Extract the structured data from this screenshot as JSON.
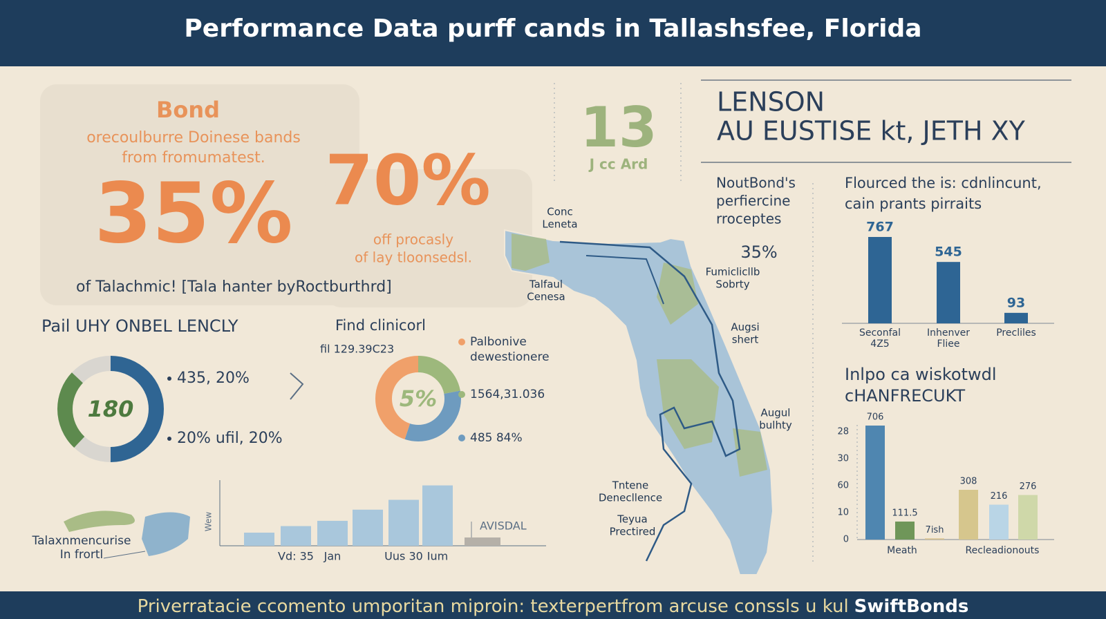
{
  "header": {
    "title": "Performance Data purff cands in Tallashsfee, Florida"
  },
  "bond_panel": {
    "heading": "Bond",
    "subtitle": [
      "orecoulburre Doinese bands",
      "from fromumatest."
    ],
    "big_stat": "35%",
    "second_stat": "70%",
    "second_caption": [
      "off procasly",
      "of lay tloonsedsl."
    ],
    "footnote": "of Talachmic! [Tala hanter byRoctburthrd]"
  },
  "badge": {
    "value": "13",
    "caption": "J cc Ard"
  },
  "headline": {
    "lines": [
      "LENSON",
      "AU EUSTISE kt, JETH XY"
    ]
  },
  "donut_left": {
    "title": "Pail UHY ONBEL LENCLY",
    "center": "180",
    "legend": [
      "435, 20%",
      "20% ufil, 20%"
    ],
    "segments": [
      {
        "value": 50,
        "color": "#2f6593"
      },
      {
        "value": 12,
        "color": "#d9d6d0"
      },
      {
        "value": 25,
        "color": "#5d8a4e"
      },
      {
        "value": 13,
        "color": "#d9d6d0"
      }
    ]
  },
  "donut_right": {
    "title": "Find clinicorl",
    "subtitle": "fil 129.39C23",
    "center": "5%",
    "legend": [
      {
        "lines": [
          "Palbonive",
          "dewestionere"
        ],
        "color": "#f0a06a"
      },
      {
        "lines": [
          "1564,31.036"
        ],
        "color": "#9db87c"
      },
      {
        "lines": [
          "485 84%"
        ],
        "color": "#6e9bbf"
      }
    ],
    "segments": [
      {
        "value": 22,
        "color": "#9db87c"
      },
      {
        "value": 33,
        "color": "#6e9bbf"
      },
      {
        "value": 45,
        "color": "#f0a06a"
      }
    ]
  },
  "bar_small": {
    "y_label": "Wew",
    "annotation": "AVISDAL",
    "categories": [
      null,
      "Vd: 35",
      "Jan",
      null,
      "Uus 30",
      "Ium"
    ],
    "values": [
      20,
      30,
      38,
      55,
      70,
      92
    ],
    "ylim": [
      0,
      100
    ],
    "color": "#a9c7dc"
  },
  "mini_map": {
    "labels": [
      "Talaxnmencurise",
      "In frortl"
    ]
  },
  "florida_map": {
    "intro": [
      "NoutBond's",
      "perfiercine",
      "rroceptes"
    ],
    "stat": "35%",
    "labels": [
      [
        "Conc",
        "Leneta"
      ],
      [
        "Talfaul",
        "Cenesa"
      ],
      [
        "Fumiclicllb",
        "Sobrty"
      ],
      [
        "Augsi",
        "shert"
      ],
      [
        "Augul",
        "bulhty"
      ],
      [
        "Tntene",
        "Denecllence"
      ],
      [
        "Teyua",
        "Prectired"
      ]
    ]
  },
  "bars_top": {
    "title": [
      "Flourced the is: cdnlincunt,",
      "cain prants pirraits"
    ],
    "categories": [
      [
        "Seconfal",
        "4Z5"
      ],
      [
        "Inhenver",
        "Fliee"
      ],
      [
        "Precliles"
      ]
    ],
    "values": [
      767,
      545,
      93
    ],
    "color": "#2e6594"
  },
  "bars_bottom": {
    "title": [
      "Inlpo ca wiskotwdl",
      "cHANFRECUKT"
    ],
    "tick_labels": [
      "28",
      "30",
      "60",
      "10",
      "0"
    ],
    "values": [
      706,
      111.5,
      7,
      308,
      216,
      276
    ],
    "value_labels": [
      "706",
      "111.5",
      "7ish",
      "308",
      "216",
      "276"
    ],
    "colors": [
      "#4f86b0",
      "#6f9659",
      "#d7c08c",
      "#d6c68d",
      "#b9d5e6",
      "#cfd8a9"
    ],
    "categories": [
      "Meath",
      "Recleadionouts"
    ]
  },
  "footer": {
    "text": "Priverratacie ccomento umporitan miproin: texterpertfrom arcuse conssls u kul",
    "brand": "SwiftBonds"
  }
}
